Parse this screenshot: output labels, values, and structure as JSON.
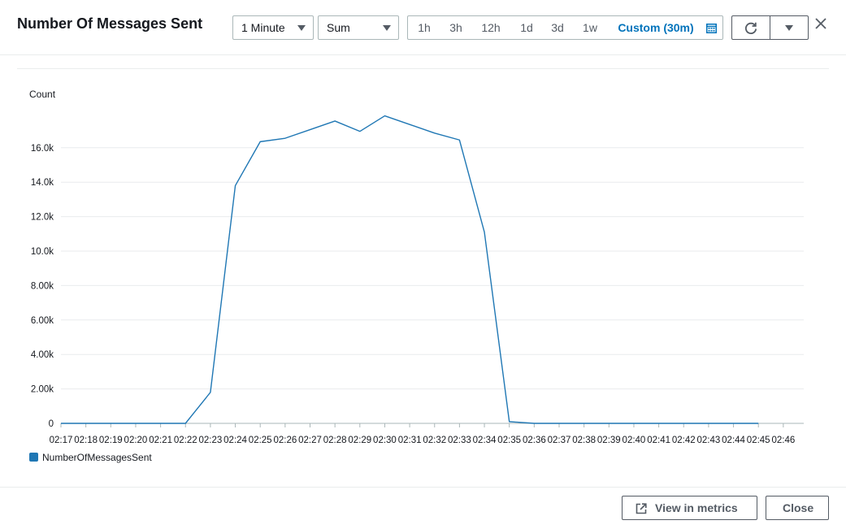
{
  "header": {
    "title": "Number Of Messages Sent",
    "period_select": "1 Minute",
    "statistic_select": "Sum",
    "time_ranges": [
      "1h",
      "3h",
      "12h",
      "1d",
      "3d",
      "1w"
    ],
    "custom_range": "Custom (30m)"
  },
  "footer": {
    "view_in_metrics": "View in metrics",
    "close": "Close"
  },
  "colors": {
    "series": "#1f77b4",
    "accent": "#0073bb"
  },
  "chart_data": {
    "type": "line",
    "ylabel": "Count",
    "y_ticks": [
      "0",
      "2.00k",
      "4.00k",
      "6.00k",
      "8.00k",
      "10.0k",
      "12.0k",
      "14.0k",
      "16.0k"
    ],
    "y_tick_values": [
      0,
      2000,
      4000,
      6000,
      8000,
      10000,
      12000,
      14000,
      16000
    ],
    "ylim": [
      0,
      18000
    ],
    "x_ticks": [
      "02:17",
      "02:18",
      "02:19",
      "02:20",
      "02:21",
      "02:22",
      "02:23",
      "02:24",
      "02:25",
      "02:26",
      "02:27",
      "02:28",
      "02:29",
      "02:30",
      "02:31",
      "02:32",
      "02:33",
      "02:34",
      "02:35",
      "02:36",
      "02:37",
      "02:38",
      "02:39",
      "02:40",
      "02:41",
      "02:42",
      "02:43",
      "02:44",
      "02:45",
      "02:46"
    ],
    "grid": true,
    "legend_position": "bottom-left",
    "series": [
      {
        "name": "NumberOfMessagesSent",
        "x": [
          "02:17",
          "02:18",
          "02:19",
          "02:20",
          "02:21",
          "02:22",
          "02:23",
          "02:24",
          "02:25",
          "02:26",
          "02:27",
          "02:28",
          "02:29",
          "02:30",
          "02:31",
          "02:32",
          "02:33",
          "02:34",
          "02:35",
          "02:36",
          "02:37",
          "02:38",
          "02:39",
          "02:40",
          "02:41",
          "02:42",
          "02:43",
          "02:44",
          "02:45"
        ],
        "values": [
          0,
          0,
          0,
          0,
          0,
          0,
          1800,
          13800,
          16350,
          16550,
          17050,
          17550,
          16950,
          17850,
          17350,
          16850,
          16450,
          11100,
          100,
          0,
          0,
          0,
          0,
          0,
          0,
          0,
          0,
          0,
          0
        ]
      }
    ]
  }
}
